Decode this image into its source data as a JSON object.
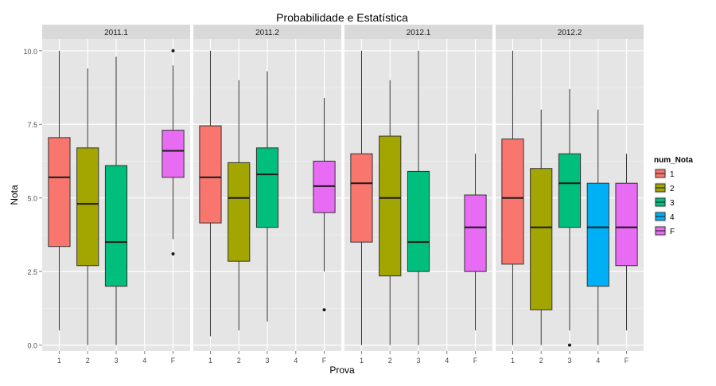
{
  "chart_data": {
    "type": "boxplot",
    "title": "Probabilidade e Estatística",
    "xlabel": "Prova",
    "ylabel": "Nota",
    "ylim": [
      -0.2,
      10.4
    ],
    "yticks": [
      0.0,
      2.5,
      5.0,
      7.5,
      10.0
    ],
    "ytick_labels": [
      "0.0",
      "2.5",
      "5.0",
      "7.5",
      "10.0"
    ],
    "categories": [
      "1",
      "2",
      "3",
      "4",
      "F"
    ],
    "grid": true,
    "legend": {
      "title": "num_Nota",
      "position": "right",
      "entries": [
        {
          "label": "1",
          "color": "#F8766D"
        },
        {
          "label": "2",
          "color": "#A3A500"
        },
        {
          "label": "3",
          "color": "#00BF7D"
        },
        {
          "label": "4",
          "color": "#00B0F6"
        },
        {
          "label": "F",
          "color": "#E76BF3"
        }
      ]
    },
    "panels": [
      {
        "label": "2011.1",
        "boxes": [
          {
            "cat": "1",
            "min": 0.5,
            "q1": 3.35,
            "median": 5.7,
            "q3": 7.05,
            "max": 10.0,
            "outliers": []
          },
          {
            "cat": "2",
            "min": 0.0,
            "q1": 2.7,
            "median": 4.8,
            "q3": 6.7,
            "max": 9.4,
            "outliers": []
          },
          {
            "cat": "3",
            "min": 0.0,
            "q1": 2.0,
            "median": 3.5,
            "q3": 6.1,
            "max": 9.8,
            "outliers": []
          },
          {
            "cat": "F",
            "min": 3.6,
            "q1": 5.7,
            "median": 6.6,
            "q3": 7.3,
            "max": 9.5,
            "outliers": [
              10.0,
              3.1
            ]
          }
        ]
      },
      {
        "label": "2011.2",
        "boxes": [
          {
            "cat": "1",
            "min": 0.3,
            "q1": 4.15,
            "median": 5.7,
            "q3": 7.45,
            "max": 10.0,
            "outliers": []
          },
          {
            "cat": "2",
            "min": 0.5,
            "q1": 2.85,
            "median": 5.0,
            "q3": 6.2,
            "max": 9.0,
            "outliers": []
          },
          {
            "cat": "3",
            "min": 0.8,
            "q1": 4.0,
            "median": 5.8,
            "q3": 6.7,
            "max": 9.3,
            "outliers": []
          },
          {
            "cat": "F",
            "min": 2.5,
            "q1": 4.5,
            "median": 5.4,
            "q3": 6.25,
            "max": 8.4,
            "outliers": [
              1.2
            ]
          }
        ]
      },
      {
        "label": "2012.1",
        "boxes": [
          {
            "cat": "1",
            "min": 0.0,
            "q1": 3.5,
            "median": 5.5,
            "q3": 6.5,
            "max": 10.0,
            "outliers": []
          },
          {
            "cat": "2",
            "min": 0.0,
            "q1": 2.35,
            "median": 5.0,
            "q3": 7.1,
            "max": 9.0,
            "outliers": []
          },
          {
            "cat": "3",
            "min": 0.0,
            "q1": 2.5,
            "median": 3.5,
            "q3": 5.9,
            "max": 10.0,
            "outliers": []
          },
          {
            "cat": "F",
            "min": 0.5,
            "q1": 2.5,
            "median": 4.0,
            "q3": 5.1,
            "max": 6.5,
            "outliers": []
          }
        ]
      },
      {
        "label": "2012.2",
        "boxes": [
          {
            "cat": "1",
            "min": 0.0,
            "q1": 2.75,
            "median": 5.0,
            "q3": 7.0,
            "max": 10.0,
            "outliers": []
          },
          {
            "cat": "2",
            "min": 0.0,
            "q1": 1.2,
            "median": 4.0,
            "q3": 6.0,
            "max": 8.0,
            "outliers": []
          },
          {
            "cat": "3",
            "min": 0.5,
            "q1": 4.0,
            "median": 5.5,
            "q3": 6.5,
            "max": 8.7,
            "outliers": [
              0.0
            ]
          },
          {
            "cat": "4",
            "min": 0.0,
            "q1": 2.0,
            "median": 4.0,
            "q3": 5.5,
            "max": 8.0,
            "outliers": []
          },
          {
            "cat": "F",
            "min": 0.5,
            "q1": 2.7,
            "median": 4.0,
            "q3": 5.5,
            "max": 6.5,
            "outliers": []
          }
        ]
      }
    ]
  }
}
